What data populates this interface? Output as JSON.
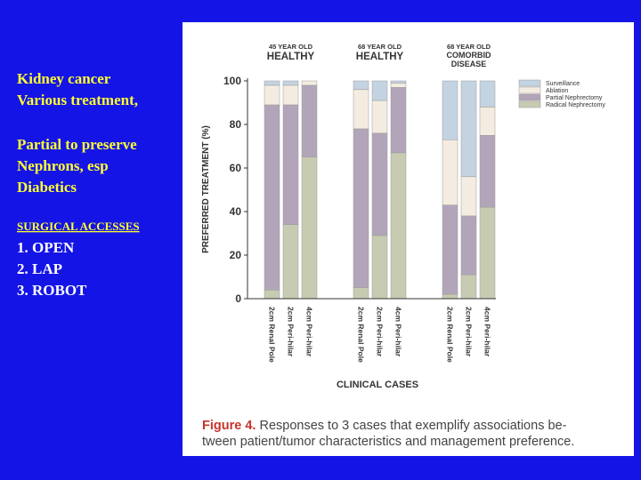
{
  "slide": {
    "lines": [
      "Kidney cancer",
      "Various treatment,",
      "Partial to preserve",
      "Nephrons, esp",
      "Diabetics",
      "SURGICAL ACCESSES",
      "1. OPEN",
      "2. LAP",
      "3. ROBOT"
    ]
  },
  "chart_data": {
    "type": "stacked_bar",
    "group_labels": [
      [
        "45 YEAR OLD",
        "HEALTHY"
      ],
      [
        "68 YEAR OLD",
        "HEALTHY"
      ],
      [
        "68 YEAR OLD",
        "COMORBID",
        "DISEASE"
      ]
    ],
    "categories": [
      "2cm Renal Pole",
      "2cm Peri-hilar",
      "4cm Peri-hilar",
      "2cm Renal Pole",
      "2cm Peri-hilar",
      "4cm Peri-hilar",
      "2cm Renal Pole",
      "2cm Peri-hilar",
      "4cm Peri-hilar"
    ],
    "series": [
      {
        "name": "Radical Nephrectomy",
        "color": "#c7cbb1",
        "values": [
          4,
          34,
          65,
          5,
          29,
          67,
          2,
          11,
          42
        ]
      },
      {
        "name": "Partial Nephrectomy",
        "color": "#b3a5b9",
        "values": [
          85,
          55,
          33,
          73,
          47,
          30,
          41,
          27,
          33
        ]
      },
      {
        "name": "Ablation",
        "color": "#f4ece0",
        "values": [
          9,
          9,
          2,
          18,
          15,
          2,
          30,
          18,
          13
        ]
      },
      {
        "name": "Surveillance",
        "color": "#c4d3e2",
        "values": [
          2,
          2,
          0,
          4,
          9,
          1,
          27,
          44,
          12
        ]
      }
    ],
    "ylabel": "PREFERRED TREATMENT (%)",
    "xlabel": "CLINICAL CASES",
    "ylim": [
      0,
      100
    ],
    "yticks": [
      0,
      20,
      40,
      60,
      80,
      100
    ],
    "caption": {
      "label": "Figure 4.",
      "lines": [
        "Responses to 3 cases that exemplify associations be-",
        "tween patient/tumor characteristics and management preference."
      ]
    }
  }
}
